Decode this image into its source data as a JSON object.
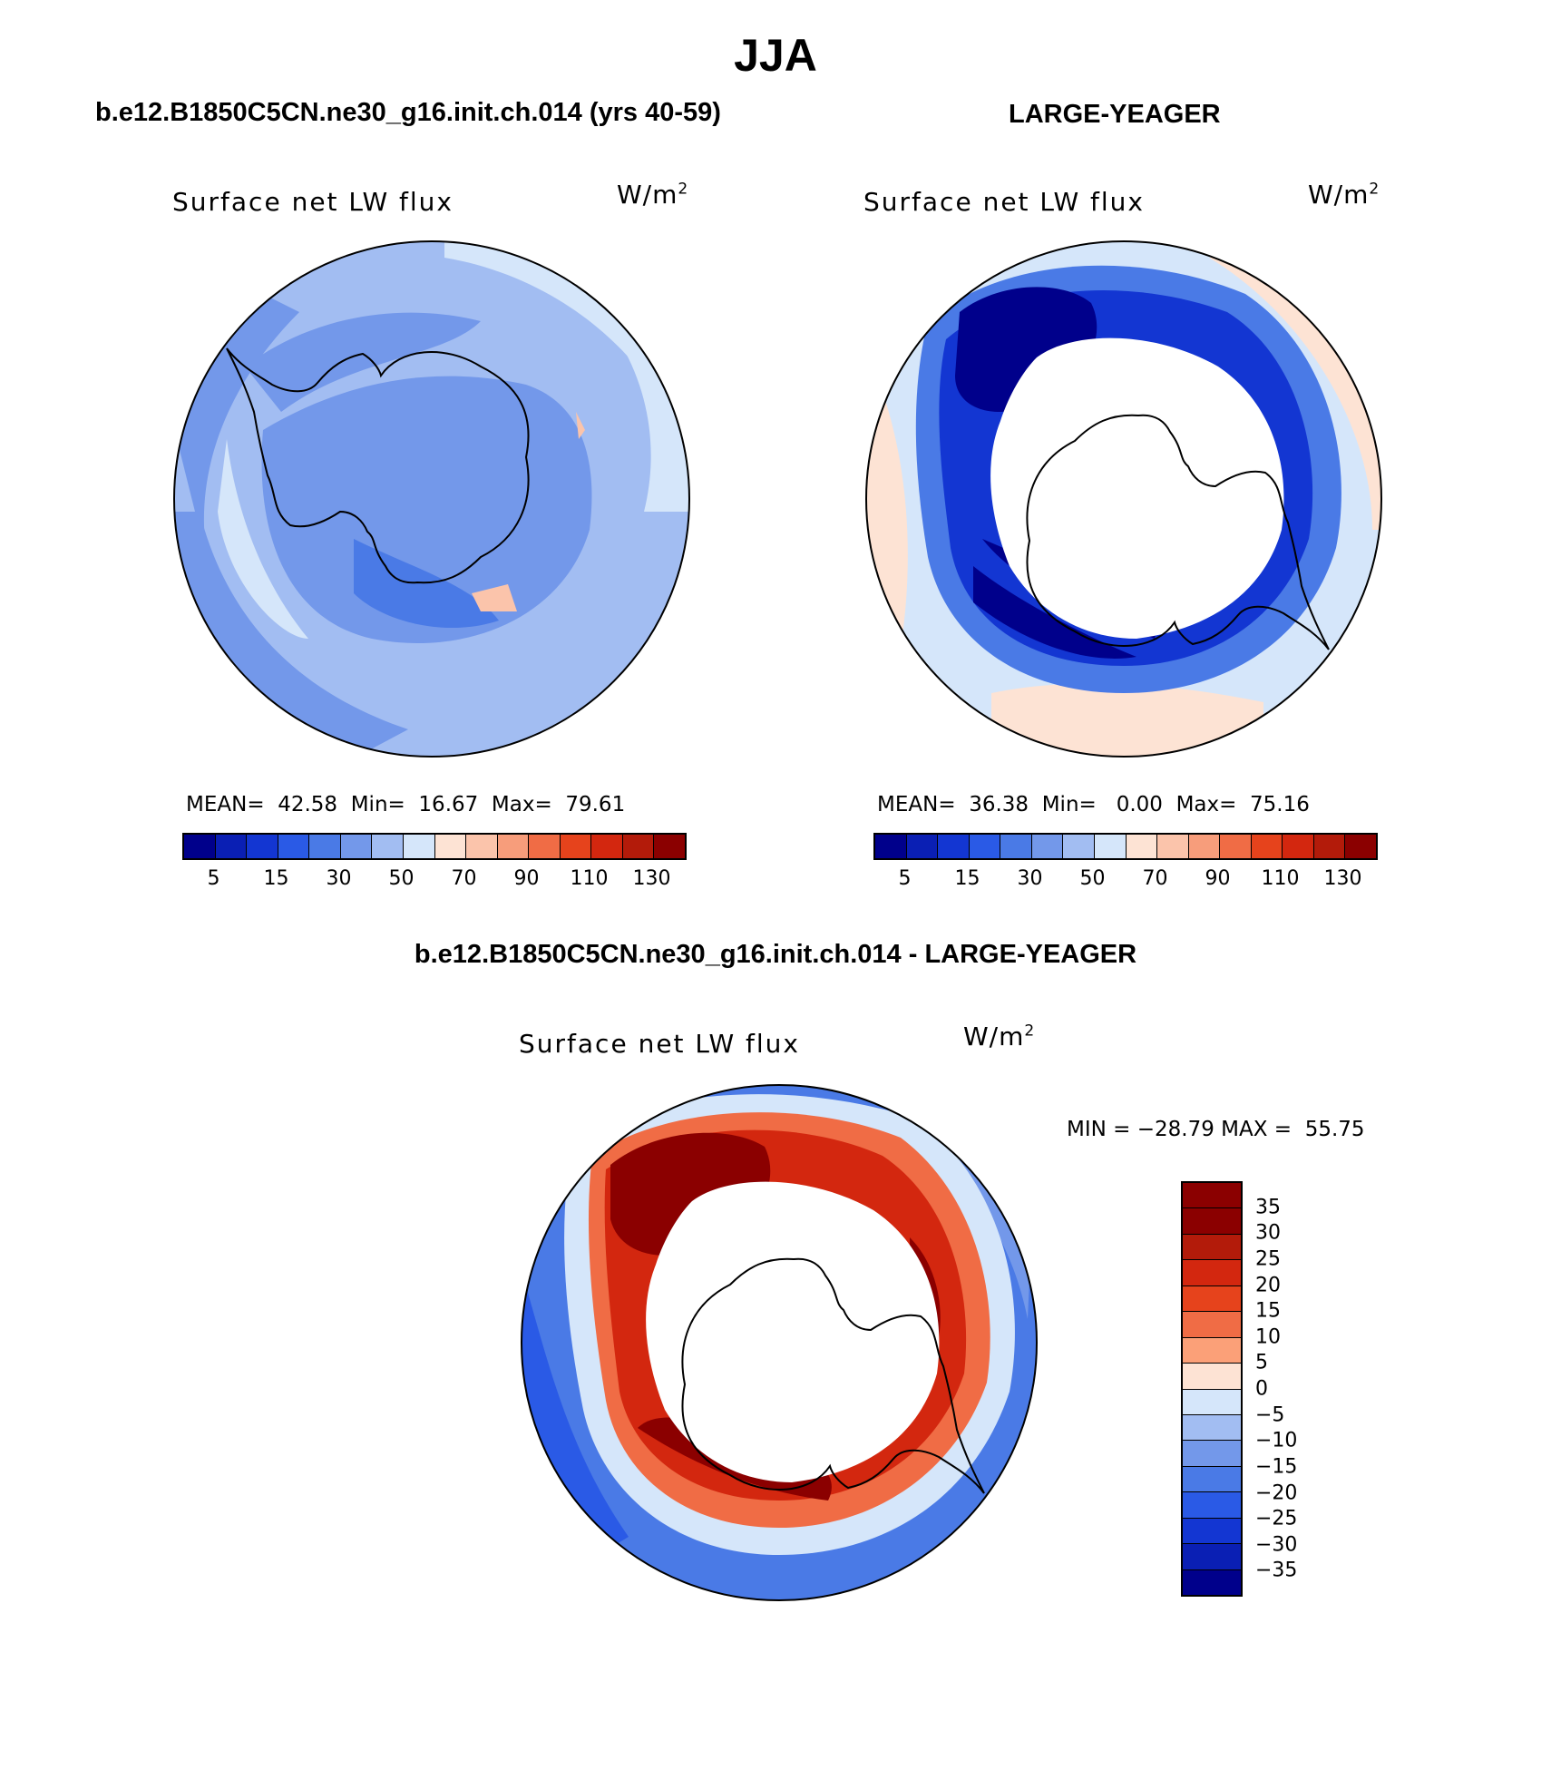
{
  "header": {
    "season": "JJA",
    "left_case": "b.e12.B1850C5CN.ne30_g16.init.ch.014 (yrs 40-59)",
    "right_case": "LARGE-YEAGER",
    "diff_title": "b.e12.B1850C5CN.ne30_g16.init.ch.014 - LARGE-YEAGER"
  },
  "panels": {
    "left": {
      "variable": "Surface net LW flux",
      "unit_base": "W/m",
      "unit_exp": "2",
      "stats": {
        "mean_label": "MEAN=",
        "mean": "42.58",
        "min_label": "Min=",
        "min": "16.67",
        "max_label": "Max=",
        "max": "79.61"
      }
    },
    "right": {
      "variable": "Surface net LW flux",
      "unit_base": "W/m",
      "unit_exp": "2",
      "stats": {
        "mean_label": "MEAN=",
        "mean": "36.38",
        "min_label": "Min=",
        "min": "0.00",
        "max_label": "Max=",
        "max": "75.16"
      }
    },
    "diff": {
      "variable": "Surface net LW flux",
      "unit_base": "W/m",
      "unit_exp": "2",
      "minmax": "MIN = −28.79 MAX =  55.75"
    }
  },
  "colorbar_abs": {
    "colors": [
      "#00008b",
      "#0a1fb4",
      "#1336d2",
      "#2a5ae6",
      "#4a7ae6",
      "#7398ea",
      "#a2bdf2",
      "#d5e6fa",
      "#fde3d4",
      "#fbc4ab",
      "#f79d7b",
      "#f06c45",
      "#e6431c",
      "#d3270f",
      "#b31b0a",
      "#8b0000"
    ],
    "labels": [
      "5",
      "15",
      "30",
      "50",
      "70",
      "90",
      "110",
      "130"
    ]
  },
  "colorbar_diff": {
    "colors": [
      "#8b0000",
      "#b31b0a",
      "#d3270f",
      "#e6431c",
      "#f06c45",
      "#fba078",
      "#fde3d4",
      "#d5e6fa",
      "#a2bdf2",
      "#7398ea",
      "#4a7ae6",
      "#2a5ae6",
      "#1336d2",
      "#0a1fb4",
      "#00008b"
    ],
    "labels": [
      "35",
      "30",
      "25",
      "20",
      "15",
      "10",
      "5",
      "0",
      "−5",
      "−10",
      "−15",
      "−20",
      "−25",
      "−30",
      "−35"
    ]
  },
  "chart_data": {
    "type": "heatmap",
    "projection": "South polar stereographic",
    "maps": [
      {
        "name": "b.e12.B1850C5CN.ne30_g16.init.ch.014 (yrs 40-59)",
        "mean": 42.58,
        "min": 16.67,
        "max": 79.61,
        "levels": [
          5,
          10,
          15,
          20,
          30,
          40,
          50,
          60,
          70,
          80,
          90,
          100,
          110,
          120,
          130
        ]
      },
      {
        "name": "LARGE-YEAGER",
        "mean": 36.38,
        "min": 0.0,
        "max": 75.16,
        "levels": [
          5,
          10,
          15,
          20,
          30,
          40,
          50,
          60,
          70,
          80,
          90,
          100,
          110,
          120,
          130
        ]
      },
      {
        "name": "b.e12.B1850C5CN.ne30_g16.init.ch.014 - LARGE-YEAGER",
        "min": -28.79,
        "max": 55.75,
        "levels": [
          -35,
          -30,
          -25,
          -20,
          -15,
          -10,
          -5,
          0,
          5,
          10,
          15,
          20,
          25,
          30,
          35
        ]
      }
    ]
  }
}
